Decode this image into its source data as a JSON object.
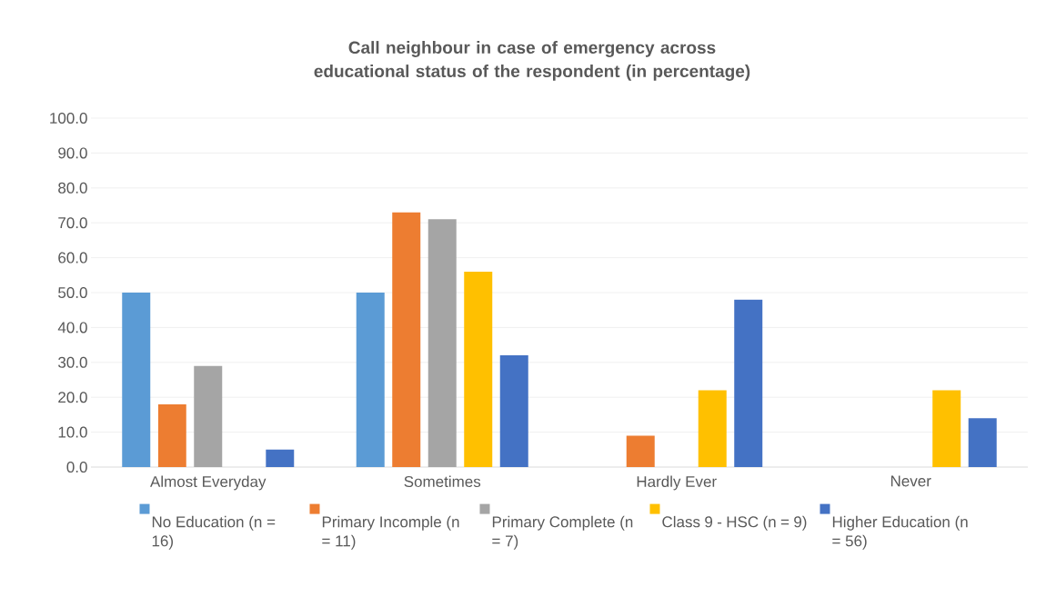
{
  "chart_data": {
    "type": "bar",
    "title": "Call neighbour in case of emergency across educational status of the respondent (in percentage)",
    "categories": [
      "Almost Everyday",
      "Sometimes",
      "Hardly Ever",
      "Never"
    ],
    "series": [
      {
        "name": "No Education (n = 16)",
        "color": "#5b9bd5",
        "values": [
          50,
          50,
          0,
          0
        ]
      },
      {
        "name": "Primary Incomple (n = 11)",
        "color": "#ed7d31",
        "values": [
          18,
          73,
          9,
          0
        ]
      },
      {
        "name": "Primary Complete (n = 7)",
        "color": "#a5a5a5",
        "values": [
          29,
          71,
          0,
          0
        ]
      },
      {
        "name": "Class 9 - HSC (n = 9)",
        "color": "#ffc000",
        "values": [
          0,
          56,
          22,
          22
        ]
      },
      {
        "name": "Higher Education (n = 56)",
        "color": "#4472c4",
        "values": [
          5,
          32,
          48,
          14
        ]
      }
    ],
    "ylim": [
      0,
      100
    ],
    "yticks": [
      {
        "value": 0,
        "label": "0.0"
      },
      {
        "value": 10,
        "label": "10.0"
      },
      {
        "value": 20,
        "label": "20.0"
      },
      {
        "value": 30,
        "label": "30.0"
      },
      {
        "value": 40,
        "label": "40.0"
      },
      {
        "value": 50,
        "label": "50.0"
      },
      {
        "value": 60,
        "label": "60.0"
      },
      {
        "value": 70,
        "label": "70.0"
      },
      {
        "value": 80,
        "label": "80.0"
      },
      {
        "value": 90,
        "label": "90.0"
      },
      {
        "value": 100,
        "label": "100.0"
      }
    ],
    "grid": "y",
    "legend": "bottom"
  }
}
